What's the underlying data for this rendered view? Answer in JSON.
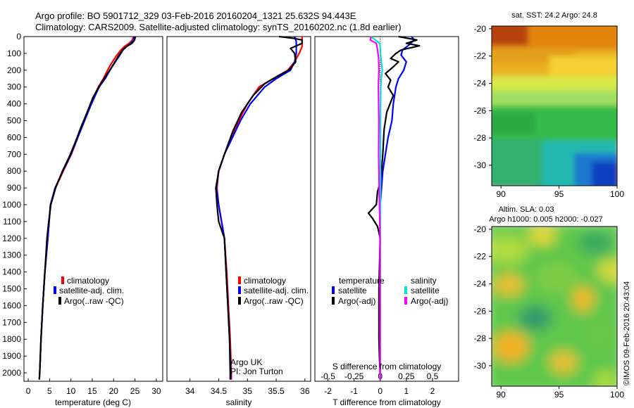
{
  "header": {
    "line1": "Argo profile: BO 5901712_329 03-Feb-2016 20160204_1321 25.632S 94.443E",
    "line2": "Climatology: CARS2009. Satellite-adjusted climatology: synTS_20160202.nc (1.8d earlier)"
  },
  "colors": {
    "climatology": "#ff0000",
    "satellite_adj_clim": "#0000ff",
    "argo": "#000000",
    "satellite_salinity": "#00e0e0",
    "argo_adj_salinity": "#ff00ff"
  },
  "y_axis": {
    "reverse": true,
    "ylim": [
      0,
      2050
    ],
    "tick_labels": [
      "0",
      "100",
      "200",
      "300",
      "400",
      "500",
      "600",
      "700",
      "800",
      "900",
      "1000",
      "1100",
      "1200",
      "1300",
      "1400",
      "1500",
      "1600",
      "1700",
      "1800",
      "1900",
      "2000"
    ]
  },
  "chart_data": [
    {
      "type": "line",
      "xlabel": "temperature (deg C)",
      "xlim": [
        -1,
        31.5
      ],
      "x_tick_labels": [
        "0",
        "5",
        "10",
        "15",
        "20",
        "25",
        "30"
      ],
      "legend": [
        "climatology",
        "satellite-adj. clim.",
        "Argo(..raw -QC)"
      ],
      "series": [
        {
          "name": "climatology",
          "color": "#ff0000",
          "points": [
            [
              24.6,
              0
            ],
            [
              24.4,
              20
            ],
            [
              23.6,
              40
            ],
            [
              22.5,
              60
            ],
            [
              21.7,
              80
            ],
            [
              20.5,
              120
            ],
            [
              19,
              180
            ],
            [
              17.6,
              250
            ],
            [
              16.4,
              300
            ],
            [
              14.6,
              400
            ],
            [
              13.1,
              500
            ],
            [
              11.6,
              600
            ],
            [
              10.1,
              700
            ],
            [
              8.2,
              800
            ],
            [
              6.4,
              900
            ],
            [
              5.2,
              1000
            ],
            [
              4.6,
              1200
            ],
            [
              3.9,
              1400
            ],
            [
              3.4,
              1600
            ],
            [
              3.0,
              1800
            ],
            [
              2.7,
              2000
            ],
            [
              2.6,
              2040
            ]
          ]
        },
        {
          "name": "satellite-adj. clim.",
          "color": "#0000ff",
          "points": [
            [
              24.8,
              0
            ],
            [
              24.7,
              20
            ],
            [
              24.0,
              40
            ],
            [
              23.0,
              60
            ],
            [
              22.2,
              80
            ],
            [
              21.2,
              120
            ],
            [
              19.6,
              180
            ],
            [
              18,
              250
            ],
            [
              16.6,
              300
            ],
            [
              14.8,
              400
            ],
            [
              13.2,
              500
            ],
            [
              11.6,
              600
            ],
            [
              10,
              700
            ],
            [
              8.1,
              800
            ],
            [
              6.3,
              900
            ],
            [
              5.2,
              1000
            ],
            [
              4.6,
              1200
            ],
            [
              3.9,
              1400
            ],
            [
              3.4,
              1600
            ],
            [
              3.0,
              1800
            ],
            [
              2.7,
              2000
            ],
            [
              2.6,
              2040
            ]
          ]
        },
        {
          "name": "Argo(..raw -QC)",
          "color": "#000000",
          "points": [
            [
              25.1,
              0
            ],
            [
              24.9,
              20
            ],
            [
              24.3,
              40
            ],
            [
              23.0,
              60
            ],
            [
              22.1,
              80
            ],
            [
              21.0,
              120
            ],
            [
              19.6,
              180
            ],
            [
              18.3,
              230
            ],
            [
              17.0,
              280
            ],
            [
              15.2,
              360
            ],
            [
              13.8,
              450
            ],
            [
              12.5,
              530
            ],
            [
              11.0,
              630
            ],
            [
              9.7,
              710
            ],
            [
              8.0,
              800
            ],
            [
              6.4,
              900
            ],
            [
              5.3,
              1000
            ],
            [
              4.8,
              1100
            ],
            [
              4.4,
              1200
            ],
            [
              3.9,
              1400
            ],
            [
              3.4,
              1600
            ],
            [
              3.0,
              1800
            ],
            [
              2.7,
              2000
            ],
            [
              2.6,
              2040
            ]
          ]
        }
      ]
    },
    {
      "type": "line",
      "xlabel": "salinity",
      "xlim": [
        33.6,
        36.1
      ],
      "x_tick_labels": [
        "34",
        "34.5",
        "35",
        "35.5",
        "36"
      ],
      "legend": [
        "climatology",
        "satellite-adj. clim.",
        "Argo(..raw -QC)"
      ],
      "annotation": [
        "Argo UK",
        "PI: Jon Turton"
      ],
      "series": [
        {
          "name": "climatology",
          "color": "#ff0000",
          "points": [
            [
              35.95,
              0
            ],
            [
              35.95,
              30
            ],
            [
              35.95,
              60
            ],
            [
              35.9,
              100
            ],
            [
              35.82,
              150
            ],
            [
              35.7,
              200
            ],
            [
              35.45,
              250
            ],
            [
              35.2,
              300
            ],
            [
              35.0,
              400
            ],
            [
              34.85,
              500
            ],
            [
              34.72,
              600
            ],
            [
              34.6,
              700
            ],
            [
              34.5,
              800
            ],
            [
              34.47,
              900
            ],
            [
              34.5,
              1000
            ],
            [
              34.55,
              1100
            ],
            [
              34.6,
              1200
            ],
            [
              34.64,
              1400
            ],
            [
              34.67,
              1600
            ],
            [
              34.7,
              1800
            ],
            [
              34.72,
              2000
            ],
            [
              34.72,
              2040
            ]
          ]
        },
        {
          "name": "satellite-adj. clim.",
          "color": "#0000ff",
          "points": [
            [
              35.82,
              0
            ],
            [
              35.85,
              30
            ],
            [
              35.85,
              60
            ],
            [
              35.85,
              100
            ],
            [
              35.82,
              150
            ],
            [
              35.75,
              200
            ],
            [
              35.5,
              250
            ],
            [
              35.3,
              300
            ],
            [
              35.05,
              400
            ],
            [
              34.88,
              500
            ],
            [
              34.74,
              600
            ],
            [
              34.6,
              700
            ],
            [
              34.5,
              800
            ],
            [
              34.46,
              900
            ],
            [
              34.5,
              1000
            ],
            [
              34.55,
              1100
            ],
            [
              34.6,
              1200
            ],
            [
              34.63,
              1400
            ],
            [
              34.66,
              1600
            ],
            [
              34.69,
              1800
            ],
            [
              34.71,
              2000
            ],
            [
              34.71,
              2040
            ]
          ]
        },
        {
          "name": "Argo(..raw -QC)",
          "color": "#000000",
          "points": [
            [
              35.55,
              0
            ],
            [
              35.8,
              10
            ],
            [
              35.95,
              20
            ],
            [
              35.95,
              40
            ],
            [
              35.75,
              70
            ],
            [
              35.82,
              100
            ],
            [
              35.84,
              150
            ],
            [
              35.72,
              200
            ],
            [
              35.55,
              230
            ],
            [
              35.3,
              280
            ],
            [
              35.1,
              350
            ],
            [
              34.9,
              450
            ],
            [
              34.75,
              560
            ],
            [
              34.6,
              700
            ],
            [
              34.5,
              800
            ],
            [
              34.45,
              900
            ],
            [
              34.47,
              1000
            ],
            [
              34.5,
              1100
            ],
            [
              34.6,
              1200
            ],
            [
              34.63,
              1400
            ],
            [
              34.66,
              1600
            ],
            [
              34.69,
              1800
            ],
            [
              34.7,
              2000
            ],
            [
              34.7,
              2040
            ]
          ]
        }
      ]
    },
    {
      "type": "line",
      "xlabel": "T difference from climatology",
      "xlabel_top": "S difference from climatology",
      "xlim": [
        -2.5,
        3.0
      ],
      "x_tick_labels": [
        "-2",
        "-1",
        "0",
        "1",
        "2"
      ],
      "top_tick_labels": [
        "-0.5",
        "-0.25",
        "0",
        "0.25",
        "0.5"
      ],
      "zero_line": "dotted",
      "legend_temperature_title": "temperature",
      "legend_salinity_title": "salinity",
      "legend": [
        "satellite",
        "Argo(-adj)",
        "satellite",
        "Argo(-adj)"
      ],
      "series": [
        {
          "name": "temperature satellite",
          "color": "#0000ff",
          "points": [
            [
              1.2,
              0
            ],
            [
              1.3,
              20
            ],
            [
              1.1,
              50
            ],
            [
              0.85,
              80
            ],
            [
              0.8,
              110
            ],
            [
              1.0,
              150
            ],
            [
              0.9,
              200
            ],
            [
              0.7,
              250
            ],
            [
              0.6,
              300
            ],
            [
              0.5,
              400
            ],
            [
              0.45,
              500
            ],
            [
              0.3,
              600
            ],
            [
              0.2,
              700
            ],
            [
              0.1,
              800
            ],
            [
              0.05,
              900
            ],
            [
              0,
              1000
            ],
            [
              0,
              2040
            ]
          ]
        },
        {
          "name": "temperature Argo(-adj)",
          "color": "#000000",
          "points": [
            [
              0.7,
              0
            ],
            [
              1.4,
              20
            ],
            [
              1.0,
              40
            ],
            [
              1.5,
              55
            ],
            [
              0.8,
              80
            ],
            [
              0.6,
              100
            ],
            [
              0.4,
              130
            ],
            [
              0.7,
              150
            ],
            [
              0.5,
              180
            ],
            [
              0.2,
              220
            ],
            [
              0.4,
              260
            ],
            [
              0.3,
              300
            ],
            [
              0.5,
              350
            ],
            [
              0.25,
              450
            ],
            [
              0.15,
              550
            ],
            [
              0.1,
              700
            ],
            [
              0.05,
              800
            ],
            [
              0,
              870
            ],
            [
              -0.1,
              920
            ],
            [
              -0.15,
              1000
            ],
            [
              -0.45,
              1050
            ],
            [
              -0.3,
              1080
            ],
            [
              -0.1,
              1130
            ],
            [
              0,
              1200
            ],
            [
              -0.05,
              1500
            ],
            [
              -0.05,
              1800
            ],
            [
              0,
              2040
            ]
          ]
        },
        {
          "name": "salinity satellite",
          "color": "#00e0e0",
          "points": [
            [
              -0.35,
              0
            ],
            [
              -0.02,
              40
            ],
            [
              0.0,
              60
            ],
            [
              0.01,
              100
            ],
            [
              0.04,
              150
            ],
            [
              0.08,
              200
            ],
            [
              0.04,
              250
            ],
            [
              0.02,
              300
            ],
            [
              0.01,
              500
            ],
            [
              0.01,
              900
            ],
            [
              0.0,
              1200
            ],
            [
              0.0,
              2040
            ]
          ]
        },
        {
          "name": "salinity Argo(-adj)",
          "color": "#ff00ff",
          "points": [
            [
              -0.35,
              0
            ],
            [
              -0.38,
              20
            ],
            [
              -0.15,
              40
            ],
            [
              -0.1,
              80
            ],
            [
              -0.06,
              130
            ],
            [
              -0.05,
              200
            ],
            [
              -0.07,
              300
            ],
            [
              -0.05,
              500
            ],
            [
              -0.06,
              700
            ],
            [
              -0.03,
              1000
            ],
            [
              -0.02,
              1080
            ],
            [
              -0.01,
              1200
            ],
            [
              0,
              2040
            ]
          ]
        }
      ]
    },
    {
      "type": "heatmap",
      "title": "sat. SST: 24.2  Argo: 24.8",
      "xlim": [
        89.2,
        100
      ],
      "ylim": [
        -31.5,
        -19.8
      ],
      "x_tick_labels": [
        "90",
        "95",
        "100"
      ],
      "y_tick_labels": [
        "-20",
        "-22",
        "-24",
        "-26",
        "-28",
        "-30"
      ]
    },
    {
      "type": "heatmap",
      "title_line1": "Altim. SLA: 0.03",
      "title_line2": "Argo h1000: 0.005 h2000: -0.027",
      "xlim": [
        89.2,
        100
      ],
      "ylim": [
        -31.5,
        -19.8
      ],
      "x_tick_labels": [
        "90",
        "95",
        "100"
      ],
      "y_tick_labels": [
        "-20",
        "-22",
        "-24",
        "-26",
        "-28",
        "-30"
      ],
      "side_text": "©IMOS 09-Feb-2016 20:43:04"
    }
  ]
}
